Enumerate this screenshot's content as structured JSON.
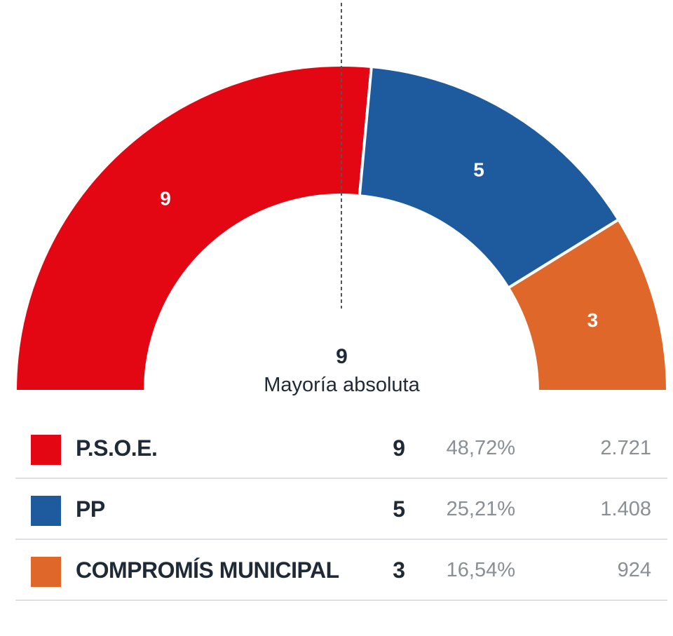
{
  "chart_data": {
    "type": "pie",
    "subtype": "hemicycle",
    "majority": {
      "seats": "9",
      "label": "Mayoría absoluta"
    },
    "series": [
      {
        "name": "P.S.O.E.",
        "seats": 9,
        "seats_label": "9",
        "percent": "48,72%",
        "votes": "2.721",
        "color": "#e30613"
      },
      {
        "name": "PP",
        "seats": 5,
        "seats_label": "5",
        "percent": "25,21%",
        "votes": "1.408",
        "color": "#1d5a9e"
      },
      {
        "name": "COMPROMÍS MUNICIPAL",
        "seats": 3,
        "seats_label": "3",
        "percent": "16,54%",
        "votes": "924",
        "color": "#e0672a"
      }
    ],
    "total_seats": 17
  }
}
